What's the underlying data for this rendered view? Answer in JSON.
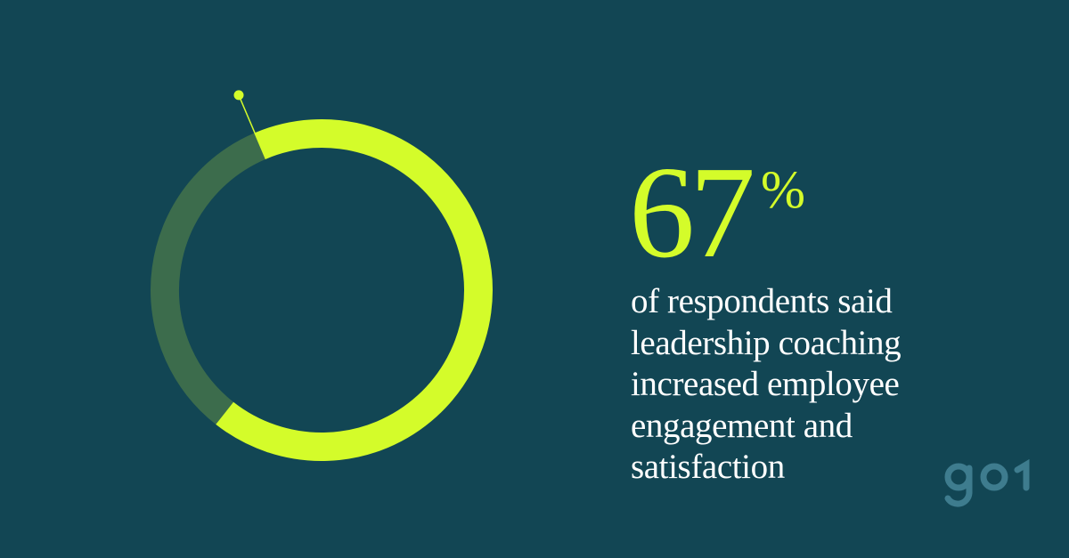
{
  "colors": {
    "background": "#124654",
    "accent": "#d4fc2a",
    "ring_remainder": "#3c6c4c",
    "caption_text": "#ffffff",
    "logo": "#3e7c8e"
  },
  "chart_data": {
    "type": "pie",
    "style": "donut",
    "categories": [
      "",
      ""
    ],
    "values": [
      67,
      33
    ],
    "unit": "%"
  },
  "stat": {
    "number": "67",
    "unit": "%"
  },
  "caption": "of respondents said leadership coaching increased employee engagement and satisfaction",
  "brand": {
    "logo_text": "go1"
  }
}
